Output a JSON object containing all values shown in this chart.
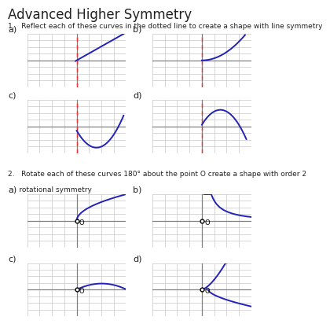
{
  "title": "Advanced Higher Symmetry",
  "q1_text": "1.   Reflect each of these curves in the dotted line to create a shape with line symmetry",
  "q2_line1": "2.   Rotate each of these curves 180° about the point O create a shape with order 2",
  "q2_line2": "     rotational symmetry",
  "bg_color": "#ffffff",
  "grid_color": "#c8c8c8",
  "axis_color": "#808080",
  "curve_color": "#2222bb",
  "dashed_color": "#ee3333",
  "text_color": "#222222",
  "label_fontsize": 8,
  "title_fontsize": 12
}
